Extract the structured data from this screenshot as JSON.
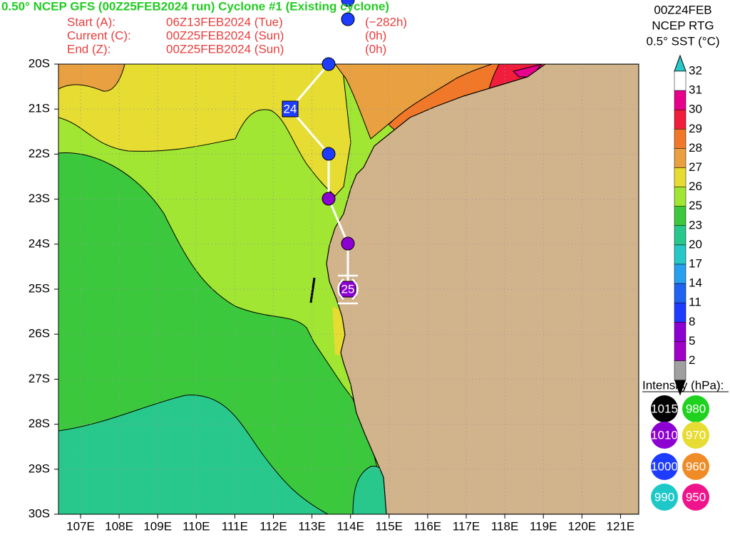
{
  "header": {
    "title": "0.50° NCEP GFS (00Z25FEB2024 run) Cyclone #1 (Existing cyclone)",
    "lines": [
      [
        "Start (A):",
        "06Z13FEB2024 (Tue)",
        "(−282h)"
      ],
      [
        "Current (C):",
        "00Z25FEB2024 (Sun)",
        "(0h)"
      ],
      [
        "End (Z):",
        "00Z25FEB2024 (Sun)",
        "(0h)"
      ]
    ]
  },
  "top_right": [
    "00Z24FEB",
    "NCEP RTG",
    "0.5° SST (°C)"
  ],
  "lat_labels": [
    "20S",
    "21S",
    "22S",
    "23S",
    "24S",
    "25S",
    "26S",
    "27S",
    "28S",
    "29S",
    "30S"
  ],
  "lon_labels": [
    "107E",
    "108E",
    "109E",
    "110E",
    "111E",
    "112E",
    "113E",
    "114E",
    "115E",
    "116E",
    "117E",
    "118E",
    "119E",
    "120E",
    "121E"
  ],
  "colorbar": {
    "labels": [
      "32",
      "31",
      "30",
      "29",
      "28",
      "27",
      "26",
      "25",
      "23",
      "20",
      "17",
      "14",
      "11",
      "8",
      "5",
      "2"
    ]
  },
  "intensity": {
    "title": "Intensity (hPa):",
    "items": [
      "1015",
      "980",
      "1010",
      "970",
      "1000",
      "960",
      "990",
      "950"
    ]
  },
  "track_labels": [
    "24",
    "25"
  ]
}
